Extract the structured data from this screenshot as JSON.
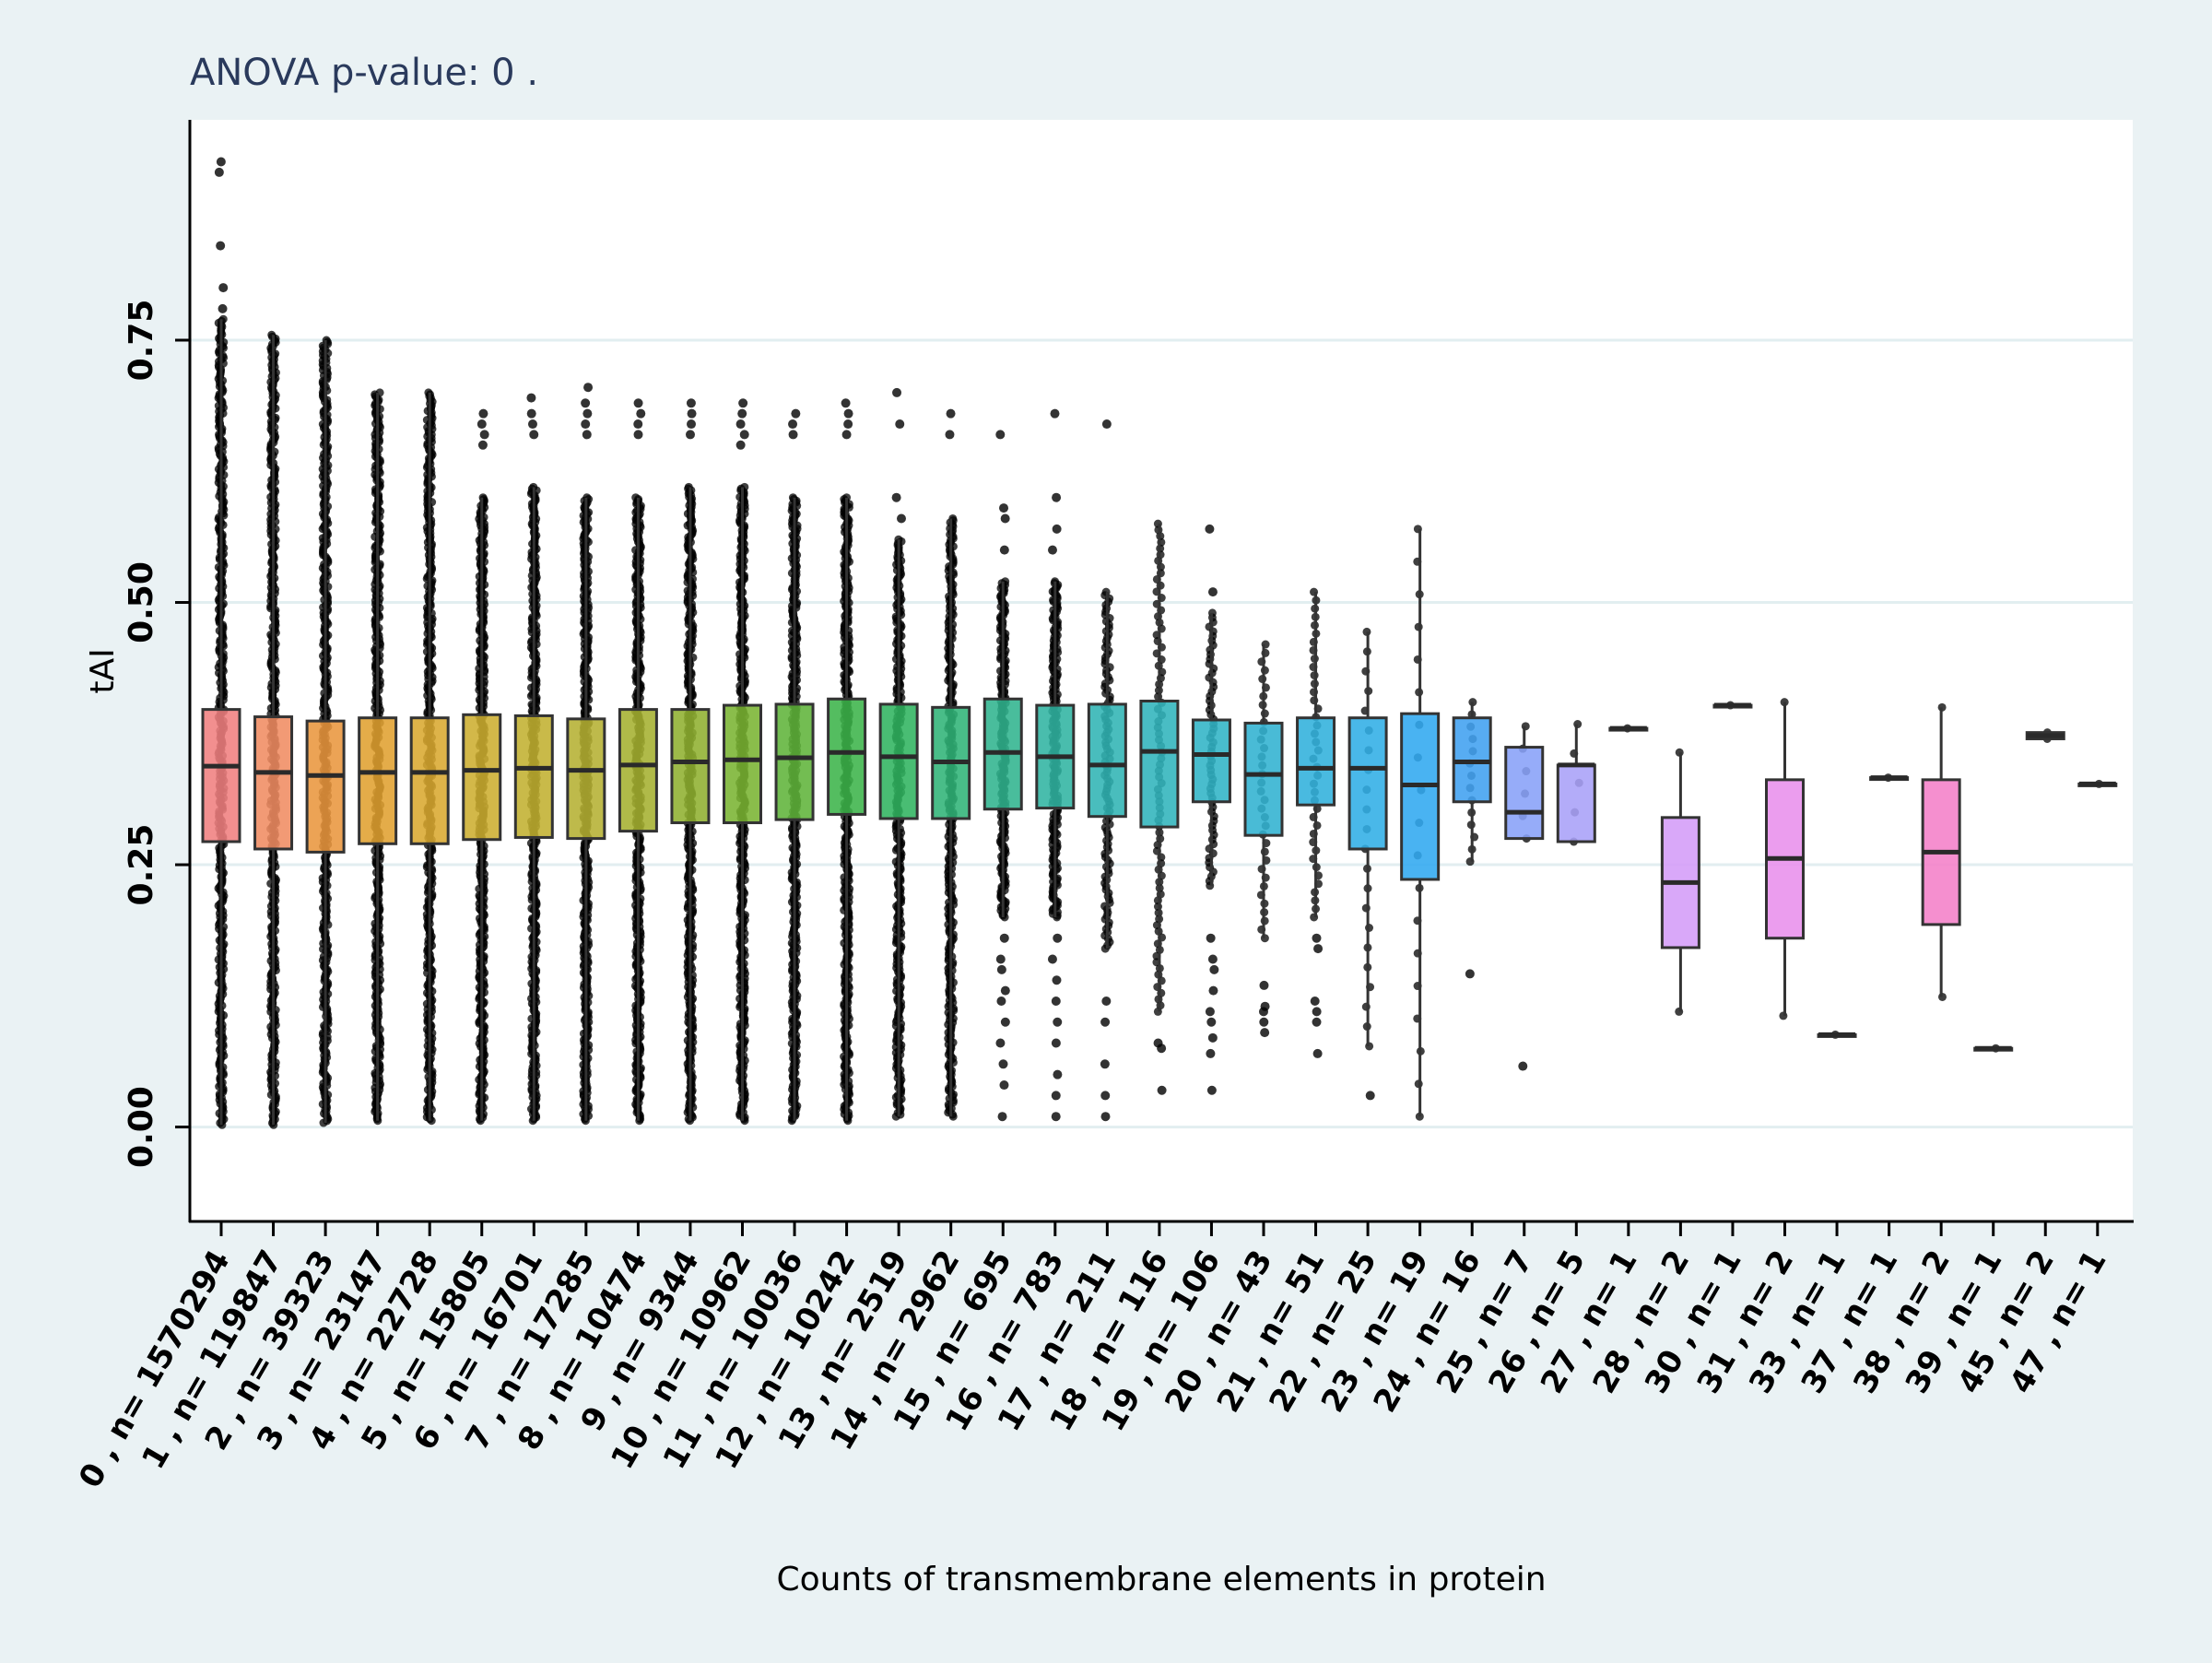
{
  "chart_data": {
    "type": "box",
    "title": "ANOVA p-value:  0 .",
    "xlabel": "Counts of transmembrane elements in protein",
    "ylabel": "tAI",
    "ylim": [
      -0.09,
      0.96
    ],
    "yticks": [
      0.0,
      0.25,
      0.5,
      0.75
    ],
    "ytick_labels": [
      "0.00",
      "0.25",
      "0.50",
      "0.75"
    ],
    "grid": "horizontal",
    "categories": [
      "0 , n= 1570294",
      "1 , n= 119847",
      "2 , n= 39323",
      "3 , n= 23147",
      "4 , n= 22728",
      "5 , n= 15805",
      "6 , n= 16701",
      "7 , n= 17285",
      "8 , n= 10474",
      "9 , n= 9344",
      "10 , n= 10962",
      "11 , n= 10036",
      "12 , n= 10242",
      "13 , n= 2519",
      "14 , n= 2962",
      "15 , n= 695",
      "16 , n= 783",
      "17 , n= 211",
      "18 , n= 116",
      "19 , n= 106",
      "20 , n= 43",
      "21 , n= 51",
      "22 , n= 25",
      "23 , n= 19",
      "24 , n= 16",
      "25 , n= 7",
      "26 , n= 5",
      "27 , n= 1",
      "28 , n= 2",
      "30 , n= 1",
      "31 , n= 2",
      "33 , n= 1",
      "37 , n= 1",
      "38 , n= 2",
      "39 , n= 1",
      "45 , n= 2",
      "47 , n= 1"
    ],
    "boxes": [
      {
        "q1": 0.272,
        "median": 0.344,
        "q3": 0.398,
        "whisker_low": 0.002,
        "whisker_high": 0.77,
        "color": "#f08080",
        "dots": {
          "range": [
            0.002,
            0.77
          ],
          "n": 420
        },
        "outliers": [
          0.78,
          0.8,
          0.84,
          0.92,
          0.91
        ]
      },
      {
        "q1": 0.265,
        "median": 0.338,
        "q3": 0.391,
        "whisker_low": 0.002,
        "whisker_high": 0.755,
        "color": "#f08c62",
        "dots": {
          "range": [
            0.002,
            0.755
          ],
          "n": 420
        },
        "outliers": []
      },
      {
        "q1": 0.262,
        "median": 0.335,
        "q3": 0.387,
        "whisker_low": 0.004,
        "whisker_high": 0.75,
        "color": "#e9963e",
        "dots": {
          "range": [
            0.004,
            0.75
          ],
          "n": 420
        },
        "outliers": []
      },
      {
        "q1": 0.27,
        "median": 0.338,
        "q3": 0.39,
        "whisker_low": 0.006,
        "whisker_high": 0.7,
        "color": "#e0a030",
        "dots": {
          "range": [
            0.006,
            0.7
          ],
          "n": 400
        },
        "outliers": []
      },
      {
        "q1": 0.27,
        "median": 0.338,
        "q3": 0.39,
        "whisker_low": 0.006,
        "whisker_high": 0.7,
        "color": "#d9a830",
        "dots": {
          "range": [
            0.006,
            0.7
          ],
          "n": 400
        },
        "outliers": []
      },
      {
        "q1": 0.274,
        "median": 0.34,
        "q3": 0.393,
        "whisker_low": 0.006,
        "whisker_high": 0.6,
        "color": "#cdae30",
        "dots": {
          "range": [
            0.006,
            0.6
          ],
          "n": 380
        },
        "outliers": [
          0.65,
          0.66,
          0.67,
          0.68
        ]
      },
      {
        "q1": 0.276,
        "median": 0.342,
        "q3": 0.392,
        "whisker_low": 0.006,
        "whisker_high": 0.61,
        "color": "#c2b030",
        "dots": {
          "range": [
            0.006,
            0.61
          ],
          "n": 380
        },
        "outliers": [
          0.66,
          0.67,
          0.68,
          0.695
        ]
      },
      {
        "q1": 0.275,
        "median": 0.34,
        "q3": 0.389,
        "whisker_low": 0.006,
        "whisker_high": 0.6,
        "color": "#b5b032",
        "dots": {
          "range": [
            0.006,
            0.6
          ],
          "n": 380
        },
        "outliers": [
          0.66,
          0.67,
          0.68,
          0.69,
          0.705
        ]
      },
      {
        "q1": 0.282,
        "median": 0.345,
        "q3": 0.398,
        "whisker_low": 0.006,
        "whisker_high": 0.6,
        "color": "#a5b030",
        "dots": {
          "range": [
            0.006,
            0.6
          ],
          "n": 380
        },
        "outliers": [
          0.66,
          0.67,
          0.68,
          0.69
        ]
      },
      {
        "q1": 0.29,
        "median": 0.348,
        "q3": 0.398,
        "whisker_low": 0.006,
        "whisker_high": 0.61,
        "color": "#90b030",
        "dots": {
          "range": [
            0.006,
            0.61
          ],
          "n": 380
        },
        "outliers": [
          0.66,
          0.67,
          0.68,
          0.69
        ]
      },
      {
        "q1": 0.29,
        "median": 0.35,
        "q3": 0.402,
        "whisker_low": 0.006,
        "whisker_high": 0.61,
        "color": "#7ab432",
        "dots": {
          "range": [
            0.006,
            0.61
          ],
          "n": 380
        },
        "outliers": [
          0.65,
          0.66,
          0.67,
          0.68,
          0.69
        ]
      },
      {
        "q1": 0.293,
        "median": 0.352,
        "q3": 0.403,
        "whisker_low": 0.006,
        "whisker_high": 0.6,
        "color": "#60b43a",
        "dots": {
          "range": [
            0.006,
            0.6
          ],
          "n": 380
        },
        "outliers": [
          0.66,
          0.67,
          0.68
        ]
      },
      {
        "q1": 0.298,
        "median": 0.357,
        "q3": 0.408,
        "whisker_low": 0.006,
        "whisker_high": 0.6,
        "color": "#3cb44a",
        "dots": {
          "range": [
            0.006,
            0.6
          ],
          "n": 380
        },
        "outliers": [
          0.66,
          0.67,
          0.68,
          0.69
        ]
      },
      {
        "q1": 0.294,
        "median": 0.353,
        "q3": 0.403,
        "whisker_low": 0.01,
        "whisker_high": 0.56,
        "color": "#30b460",
        "dots": {
          "range": [
            0.01,
            0.56
          ],
          "n": 300
        },
        "outliers": [
          0.58,
          0.6,
          0.67,
          0.7
        ]
      },
      {
        "q1": 0.294,
        "median": 0.348,
        "q3": 0.4,
        "whisker_low": 0.01,
        "whisker_high": 0.58,
        "color": "#30b478",
        "dots": {
          "range": [
            0.01,
            0.58
          ],
          "n": 300
        },
        "outliers": [
          0.66,
          0.68
        ]
      },
      {
        "q1": 0.303,
        "median": 0.357,
        "q3": 0.408,
        "whisker_low": 0.2,
        "whisker_high": 0.52,
        "color": "#30b48e",
        "dots": {
          "range": [
            0.2,
            0.52
          ],
          "n": 200
        },
        "outliers": [
          0.01,
          0.04,
          0.06,
          0.08,
          0.1,
          0.12,
          0.13,
          0.15,
          0.16,
          0.18,
          0.55,
          0.58,
          0.59,
          0.66
        ]
      },
      {
        "q1": 0.304,
        "median": 0.353,
        "q3": 0.402,
        "whisker_low": 0.2,
        "whisker_high": 0.52,
        "color": "#30b4a2",
        "dots": {
          "range": [
            0.2,
            0.52
          ],
          "n": 200
        },
        "outliers": [
          0.01,
          0.03,
          0.05,
          0.08,
          0.1,
          0.12,
          0.14,
          0.16,
          0.18,
          0.55,
          0.57,
          0.6,
          0.68
        ]
      },
      {
        "q1": 0.296,
        "median": 0.345,
        "q3": 0.403,
        "whisker_low": 0.17,
        "whisker_high": 0.51,
        "color": "#30b4b4",
        "dots": {
          "range": [
            0.17,
            0.51
          ],
          "n": 110
        },
        "outliers": [
          0.01,
          0.03,
          0.06,
          0.1,
          0.12,
          0.67
        ]
      },
      {
        "q1": 0.286,
        "median": 0.358,
        "q3": 0.406,
        "whisker_low": 0.11,
        "whisker_high": 0.575,
        "color": "#30b4bc",
        "dots": {
          "range": [
            0.11,
            0.575
          ],
          "n": 80
        },
        "outliers": [
          0.035,
          0.075,
          0.08
        ]
      },
      {
        "q1": 0.31,
        "median": 0.355,
        "q3": 0.388,
        "whisker_low": 0.23,
        "whisker_high": 0.49,
        "color": "#30b4c6",
        "dots": {
          "range": [
            0.23,
            0.49
          ],
          "n": 60
        },
        "outliers": [
          0.035,
          0.07,
          0.085,
          0.1,
          0.11,
          0.13,
          0.15,
          0.16,
          0.18,
          0.51,
          0.57
        ]
      },
      {
        "q1": 0.278,
        "median": 0.336,
        "q3": 0.385,
        "whisker_low": 0.18,
        "whisker_high": 0.46,
        "color": "#30b2d0",
        "dots": {
          "range": [
            0.18,
            0.46
          ],
          "n": 35
        },
        "outliers": [
          0.09,
          0.1,
          0.11,
          0.115,
          0.135
        ]
      },
      {
        "q1": 0.307,
        "median": 0.342,
        "q3": 0.39,
        "whisker_low": 0.2,
        "whisker_high": 0.51,
        "color": "#30b0dc",
        "dots": {
          "range": [
            0.2,
            0.51
          ],
          "n": 40
        },
        "outliers": [
          0.07,
          0.1,
          0.11,
          0.12,
          0.17,
          0.18
        ]
      },
      {
        "q1": 0.265,
        "median": 0.342,
        "q3": 0.39,
        "whisker_low": 0.077,
        "whisker_high": 0.472,
        "color": "#30aee6",
        "dots": {
          "range": [
            0.077,
            0.472
          ],
          "n": 22
        },
        "outliers": [
          0.03
        ]
      },
      {
        "q1": 0.236,
        "median": 0.326,
        "q3": 0.394,
        "whisker_low": 0.01,
        "whisker_high": 0.57,
        "color": "#30a8f0",
        "dots": {
          "range": [
            0.01,
            0.57
          ],
          "n": 19
        },
        "outliers": []
      },
      {
        "q1": 0.31,
        "median": 0.348,
        "q3": 0.39,
        "whisker_low": 0.253,
        "whisker_high": 0.405,
        "color": "#40a0f0",
        "dots": {
          "range": [
            0.253,
            0.405
          ],
          "n": 14
        },
        "outliers": [
          0.146
        ]
      },
      {
        "q1": 0.275,
        "median": 0.3,
        "q3": 0.362,
        "whisker_low": 0.275,
        "whisker_high": 0.382,
        "color": "#88a0f8",
        "dots": {
          "range": [
            0.275,
            0.382
          ],
          "n": 6
        },
        "outliers": [
          0.058
        ]
      },
      {
        "q1": 0.272,
        "median": 0.345,
        "q3": 0.345,
        "whisker_low": 0.272,
        "whisker_high": 0.384,
        "color": "#a8a0f8",
        "dots": {
          "range": [
            0.272,
            0.384
          ],
          "n": 5
        },
        "outliers": []
      },
      {
        "q1": 0.38,
        "median": 0.38,
        "q3": 0.38,
        "whisker_low": 0.38,
        "whisker_high": 0.38,
        "color": "#c0a0f8",
        "dots": {
          "range": [
            0.38,
            0.38
          ],
          "n": 1
        },
        "outliers": []
      },
      {
        "q1": 0.171,
        "median": 0.233,
        "q3": 0.295,
        "whisker_low": 0.11,
        "whisker_high": 0.357,
        "color": "#d49cf8",
        "dots": {
          "range": [
            0.11,
            0.357
          ],
          "n": 2
        },
        "outliers": []
      },
      {
        "q1": 0.402,
        "median": 0.402,
        "q3": 0.402,
        "whisker_low": 0.402,
        "whisker_high": 0.402,
        "color": "#dc98f0",
        "dots": {
          "range": [
            0.402,
            0.402
          ],
          "n": 1
        },
        "outliers": []
      },
      {
        "q1": 0.18,
        "median": 0.256,
        "q3": 0.331,
        "whisker_low": 0.106,
        "whisker_high": 0.405,
        "color": "#e890ec",
        "dots": {
          "range": [
            0.106,
            0.405
          ],
          "n": 2
        },
        "outliers": []
      },
      {
        "q1": 0.088,
        "median": 0.088,
        "q3": 0.088,
        "whisker_low": 0.088,
        "whisker_high": 0.088,
        "color": "#ec8ce0",
        "dots": {
          "range": [
            0.088,
            0.088
          ],
          "n": 1
        },
        "outliers": []
      },
      {
        "q1": 0.333,
        "median": 0.333,
        "q3": 0.333,
        "whisker_low": 0.333,
        "whisker_high": 0.333,
        "color": "#f088d4",
        "dots": {
          "range": [
            0.333,
            0.333
          ],
          "n": 1
        },
        "outliers": []
      },
      {
        "q1": 0.193,
        "median": 0.262,
        "q3": 0.331,
        "whisker_low": 0.124,
        "whisker_high": 0.4,
        "color": "#f480c8",
        "dots": {
          "range": [
            0.124,
            0.4
          ],
          "n": 2
        },
        "outliers": []
      },
      {
        "q1": 0.075,
        "median": 0.075,
        "q3": 0.075,
        "whisker_low": 0.075,
        "whisker_high": 0.075,
        "color": "#f47cbc",
        "dots": {
          "range": [
            0.075,
            0.075
          ],
          "n": 1
        },
        "outliers": []
      },
      {
        "q1": 0.37,
        "median": 0.373,
        "q3": 0.376,
        "whisker_low": 0.37,
        "whisker_high": 0.376,
        "color": "#f478b0",
        "dots": {
          "range": [
            0.37,
            0.376
          ],
          "n": 2
        },
        "outliers": []
      },
      {
        "q1": 0.327,
        "median": 0.327,
        "q3": 0.327,
        "whisker_low": 0.327,
        "whisker_high": 0.327,
        "color": "#f474a8",
        "dots": {
          "range": [
            0.327,
            0.327
          ],
          "n": 1
        },
        "outliers": []
      }
    ]
  }
}
